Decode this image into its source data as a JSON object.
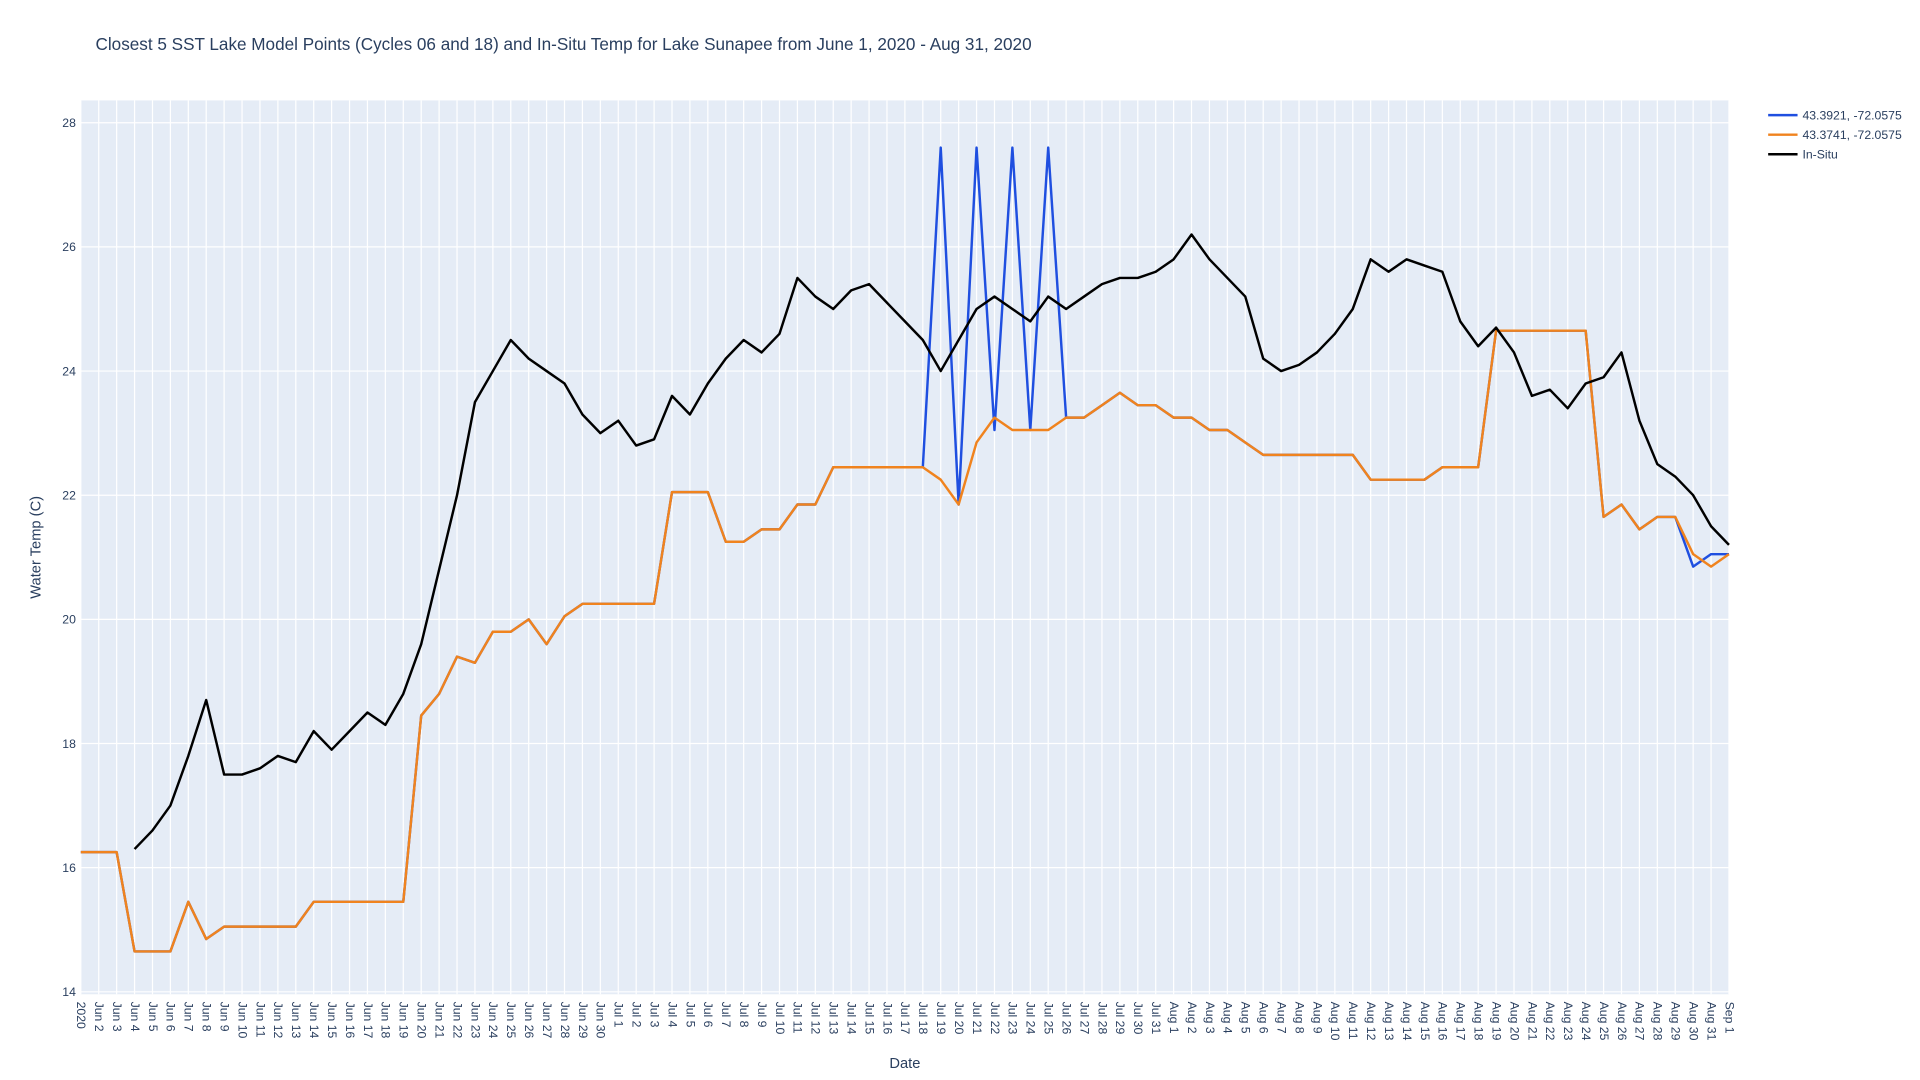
{
  "chart_data": {
    "type": "line",
    "title": "Closest 5 SST Lake Model Points (Cycles 06 and 18) and In-Situ Temp for Lake Sunapee from June 1, 2020 - Aug 31, 2020",
    "xlabel": "Date",
    "ylabel": "Water Temp (C)",
    "grid": true,
    "legend": "top-right",
    "xlim": [
      "2020-06-01",
      "2020-09-01"
    ],
    "ylim": [
      13.96,
      28.36
    ],
    "yticks": [
      14,
      16,
      18,
      20,
      22,
      24,
      26,
      28
    ],
    "xticks": [
      {
        "value": "2020-06-01",
        "label": "2020"
      },
      {
        "value": "2020-06-02",
        "label": "Jun 2"
      },
      {
        "value": "2020-06-03",
        "label": "Jun 3"
      },
      {
        "value": "2020-06-04",
        "label": "Jun 4"
      },
      {
        "value": "2020-06-05",
        "label": "Jun 5"
      },
      {
        "value": "2020-06-06",
        "label": "Jun 6"
      },
      {
        "value": "2020-06-07",
        "label": "Jun 7"
      },
      {
        "value": "2020-06-08",
        "label": "Jun 8"
      },
      {
        "value": "2020-06-09",
        "label": "Jun 9"
      },
      {
        "value": "2020-06-10",
        "label": "Jun 10"
      },
      {
        "value": "2020-06-11",
        "label": "Jun 11"
      },
      {
        "value": "2020-06-12",
        "label": "Jun 12"
      },
      {
        "value": "2020-06-13",
        "label": "Jun 13"
      },
      {
        "value": "2020-06-14",
        "label": "Jun 14"
      },
      {
        "value": "2020-06-15",
        "label": "Jun 15"
      },
      {
        "value": "2020-06-16",
        "label": "Jun 16"
      },
      {
        "value": "2020-06-17",
        "label": "Jun 17"
      },
      {
        "value": "2020-06-18",
        "label": "Jun 18"
      },
      {
        "value": "2020-06-19",
        "label": "Jun 19"
      },
      {
        "value": "2020-06-20",
        "label": "Jun 20"
      },
      {
        "value": "2020-06-21",
        "label": "Jun 21"
      },
      {
        "value": "2020-06-22",
        "label": "Jun 22"
      },
      {
        "value": "2020-06-23",
        "label": "Jun 23"
      },
      {
        "value": "2020-06-24",
        "label": "Jun 24"
      },
      {
        "value": "2020-06-25",
        "label": "Jun 25"
      },
      {
        "value": "2020-06-26",
        "label": "Jun 26"
      },
      {
        "value": "2020-06-27",
        "label": "Jun 27"
      },
      {
        "value": "2020-06-28",
        "label": "Jun 28"
      },
      {
        "value": "2020-06-29",
        "label": "Jun 29"
      },
      {
        "value": "2020-06-30",
        "label": "Jun 30"
      },
      {
        "value": "2020-07-01",
        "label": "Jul 1"
      },
      {
        "value": "2020-07-02",
        "label": "Jul 2"
      },
      {
        "value": "2020-07-03",
        "label": "Jul 3"
      },
      {
        "value": "2020-07-04",
        "label": "Jul 4"
      },
      {
        "value": "2020-07-05",
        "label": "Jul 5"
      },
      {
        "value": "2020-07-06",
        "label": "Jul 6"
      },
      {
        "value": "2020-07-07",
        "label": "Jul 7"
      },
      {
        "value": "2020-07-08",
        "label": "Jul 8"
      },
      {
        "value": "2020-07-09",
        "label": "Jul 9"
      },
      {
        "value": "2020-07-10",
        "label": "Jul 10"
      },
      {
        "value": "2020-07-11",
        "label": "Jul 11"
      },
      {
        "value": "2020-07-12",
        "label": "Jul 12"
      },
      {
        "value": "2020-07-13",
        "label": "Jul 13"
      },
      {
        "value": "2020-07-14",
        "label": "Jul 14"
      },
      {
        "value": "2020-07-15",
        "label": "Jul 15"
      },
      {
        "value": "2020-07-16",
        "label": "Jul 16"
      },
      {
        "value": "2020-07-17",
        "label": "Jul 17"
      },
      {
        "value": "2020-07-18",
        "label": "Jul 18"
      },
      {
        "value": "2020-07-19",
        "label": "Jul 19"
      },
      {
        "value": "2020-07-20",
        "label": "Jul 20"
      },
      {
        "value": "2020-07-21",
        "label": "Jul 21"
      },
      {
        "value": "2020-07-22",
        "label": "Jul 22"
      },
      {
        "value": "2020-07-23",
        "label": "Jul 23"
      },
      {
        "value": "2020-07-24",
        "label": "Jul 24"
      },
      {
        "value": "2020-07-25",
        "label": "Jul 25"
      },
      {
        "value": "2020-07-26",
        "label": "Jul 26"
      },
      {
        "value": "2020-07-27",
        "label": "Jul 27"
      },
      {
        "value": "2020-07-28",
        "label": "Jul 28"
      },
      {
        "value": "2020-07-29",
        "label": "Jul 29"
      },
      {
        "value": "2020-07-30",
        "label": "Jul 30"
      },
      {
        "value": "2020-07-31",
        "label": "Jul 31"
      },
      {
        "value": "2020-08-01",
        "label": "Aug 1"
      },
      {
        "value": "2020-08-02",
        "label": "Aug 2"
      },
      {
        "value": "2020-08-03",
        "label": "Aug 3"
      },
      {
        "value": "2020-08-04",
        "label": "Aug 4"
      },
      {
        "value": "2020-08-05",
        "label": "Aug 5"
      },
      {
        "value": "2020-08-06",
        "label": "Aug 6"
      },
      {
        "value": "2020-08-07",
        "label": "Aug 7"
      },
      {
        "value": "2020-08-08",
        "label": "Aug 8"
      },
      {
        "value": "2020-08-09",
        "label": "Aug 9"
      },
      {
        "value": "2020-08-10",
        "label": "Aug 10"
      },
      {
        "value": "2020-08-11",
        "label": "Aug 11"
      },
      {
        "value": "2020-08-12",
        "label": "Aug 12"
      },
      {
        "value": "2020-08-13",
        "label": "Aug 13"
      },
      {
        "value": "2020-08-14",
        "label": "Aug 14"
      },
      {
        "value": "2020-08-15",
        "label": "Aug 15"
      },
      {
        "value": "2020-08-16",
        "label": "Aug 16"
      },
      {
        "value": "2020-08-17",
        "label": "Aug 17"
      },
      {
        "value": "2020-08-18",
        "label": "Aug 18"
      },
      {
        "value": "2020-08-19",
        "label": "Aug 19"
      },
      {
        "value": "2020-08-20",
        "label": "Aug 20"
      },
      {
        "value": "2020-08-21",
        "label": "Aug 21"
      },
      {
        "value": "2020-08-22",
        "label": "Aug 22"
      },
      {
        "value": "2020-08-23",
        "label": "Aug 23"
      },
      {
        "value": "2020-08-24",
        "label": "Aug 24"
      },
      {
        "value": "2020-08-25",
        "label": "Aug 25"
      },
      {
        "value": "2020-08-26",
        "label": "Aug 26"
      },
      {
        "value": "2020-08-27",
        "label": "Aug 27"
      },
      {
        "value": "2020-08-28",
        "label": "Aug 28"
      },
      {
        "value": "2020-08-29",
        "label": "Aug 29"
      },
      {
        "value": "2020-08-30",
        "label": "Aug 30"
      },
      {
        "value": "2020-08-31",
        "label": "Aug 31"
      },
      {
        "value": "2020-09-01",
        "label": "Sep 1"
      }
    ],
    "x": [
      "2020-06-01",
      "2020-06-02",
      "2020-06-03",
      "2020-06-04",
      "2020-06-05",
      "2020-06-06",
      "2020-06-07",
      "2020-06-08",
      "2020-06-09",
      "2020-06-10",
      "2020-06-11",
      "2020-06-12",
      "2020-06-13",
      "2020-06-14",
      "2020-06-15",
      "2020-06-16",
      "2020-06-17",
      "2020-06-18",
      "2020-06-19",
      "2020-06-20",
      "2020-06-21",
      "2020-06-22",
      "2020-06-23",
      "2020-06-24",
      "2020-06-25",
      "2020-06-26",
      "2020-06-27",
      "2020-06-28",
      "2020-06-29",
      "2020-06-30",
      "2020-07-01",
      "2020-07-02",
      "2020-07-03",
      "2020-07-04",
      "2020-07-05",
      "2020-07-06",
      "2020-07-07",
      "2020-07-08",
      "2020-07-09",
      "2020-07-10",
      "2020-07-11",
      "2020-07-12",
      "2020-07-13",
      "2020-07-14",
      "2020-07-15",
      "2020-07-16",
      "2020-07-17",
      "2020-07-18",
      "2020-07-19",
      "2020-07-20",
      "2020-07-21",
      "2020-07-22",
      "2020-07-23",
      "2020-07-24",
      "2020-07-25",
      "2020-07-26",
      "2020-07-27",
      "2020-07-28",
      "2020-07-29",
      "2020-07-30",
      "2020-07-31",
      "2020-08-01",
      "2020-08-02",
      "2020-08-03",
      "2020-08-04",
      "2020-08-05",
      "2020-08-06",
      "2020-08-07",
      "2020-08-08",
      "2020-08-09",
      "2020-08-10",
      "2020-08-11",
      "2020-08-12",
      "2020-08-13",
      "2020-08-14",
      "2020-08-15",
      "2020-08-16",
      "2020-08-17",
      "2020-08-18",
      "2020-08-19",
      "2020-08-20",
      "2020-08-21",
      "2020-08-22",
      "2020-08-23",
      "2020-08-24",
      "2020-08-25",
      "2020-08-26",
      "2020-08-27",
      "2020-08-28",
      "2020-08-29",
      "2020-08-30",
      "2020-08-31",
      "2020-09-01"
    ],
    "series": [
      {
        "name": "43.3921, -72.0575",
        "color": "#1f4fe0",
        "values": [
          16.25,
          16.25,
          16.25,
          14.65,
          14.65,
          14.65,
          15.45,
          14.85,
          15.05,
          15.05,
          15.05,
          15.05,
          15.05,
          15.45,
          15.45,
          15.45,
          15.45,
          15.45,
          15.45,
          18.45,
          18.8,
          19.4,
          19.3,
          19.8,
          19.8,
          20.0,
          19.6,
          20.05,
          20.25,
          20.25,
          20.25,
          20.25,
          20.25,
          22.05,
          22.05,
          22.05,
          21.25,
          21.25,
          21.45,
          21.45,
          21.85,
          21.85,
          22.45,
          22.45,
          22.45,
          22.45,
          22.45,
          22.45,
          27.6,
          21.85,
          27.6,
          23.05,
          27.6,
          23.05,
          27.6,
          23.25,
          23.25,
          23.45,
          23.65,
          23.45,
          23.45,
          23.25,
          23.25,
          23.05,
          23.05,
          22.85,
          22.65,
          22.65,
          22.65,
          22.65,
          22.65,
          22.65,
          22.25,
          22.25,
          22.25,
          22.25,
          22.45,
          22.45,
          22.45,
          24.65,
          24.65,
          24.65,
          24.65,
          24.65,
          24.65,
          21.65,
          21.85,
          21.45,
          21.65,
          21.65,
          20.85,
          21.05,
          21.05
        ]
      },
      {
        "name": "43.3741, -72.0575",
        "color": "#f0831e",
        "values": [
          16.25,
          16.25,
          16.25,
          14.65,
          14.65,
          14.65,
          15.45,
          14.85,
          15.05,
          15.05,
          15.05,
          15.05,
          15.05,
          15.45,
          15.45,
          15.45,
          15.45,
          15.45,
          15.45,
          18.45,
          18.8,
          19.4,
          19.3,
          19.8,
          19.8,
          20.0,
          19.6,
          20.05,
          20.25,
          20.25,
          20.25,
          20.25,
          20.25,
          22.05,
          22.05,
          22.05,
          21.25,
          21.25,
          21.45,
          21.45,
          21.85,
          21.85,
          22.45,
          22.45,
          22.45,
          22.45,
          22.45,
          22.45,
          22.25,
          21.85,
          22.85,
          23.25,
          23.05,
          23.05,
          23.05,
          23.25,
          23.25,
          23.45,
          23.65,
          23.45,
          23.45,
          23.25,
          23.25,
          23.05,
          23.05,
          22.85,
          22.65,
          22.65,
          22.65,
          22.65,
          22.65,
          22.65,
          22.25,
          22.25,
          22.25,
          22.25,
          22.45,
          22.45,
          22.45,
          24.65,
          24.65,
          24.65,
          24.65,
          24.65,
          24.65,
          21.65,
          21.85,
          21.45,
          21.65,
          21.65,
          21.05,
          20.85,
          21.05
        ]
      },
      {
        "name": "In-Situ",
        "color": "#000000",
        "values": [
          null,
          null,
          null,
          16.3,
          16.6,
          17.0,
          17.8,
          18.7,
          17.5,
          17.5,
          17.6,
          17.8,
          17.7,
          18.2,
          17.9,
          18.2,
          18.5,
          18.3,
          18.8,
          19.6,
          20.8,
          22.0,
          23.5,
          24.0,
          24.5,
          24.2,
          24.0,
          23.8,
          23.3,
          23.0,
          23.2,
          22.8,
          22.9,
          23.6,
          23.3,
          23.8,
          24.2,
          24.5,
          24.3,
          24.6,
          25.5,
          25.2,
          25.0,
          25.3,
          25.4,
          25.1,
          24.8,
          24.5,
          24.0,
          24.5,
          25.0,
          25.2,
          25.0,
          24.8,
          25.2,
          25.0,
          25.2,
          25.4,
          25.5,
          25.5,
          25.6,
          25.8,
          26.2,
          25.8,
          25.5,
          25.2,
          24.2,
          24.0,
          24.1,
          24.3,
          24.6,
          25.0,
          25.8,
          25.6,
          25.8,
          25.7,
          25.6,
          24.8,
          24.4,
          24.7,
          24.3,
          23.6,
          23.7,
          23.4,
          23.8,
          23.9,
          24.3,
          23.2,
          22.5,
          22.3,
          22.0,
          21.5,
          21.2
        ]
      }
    ]
  }
}
